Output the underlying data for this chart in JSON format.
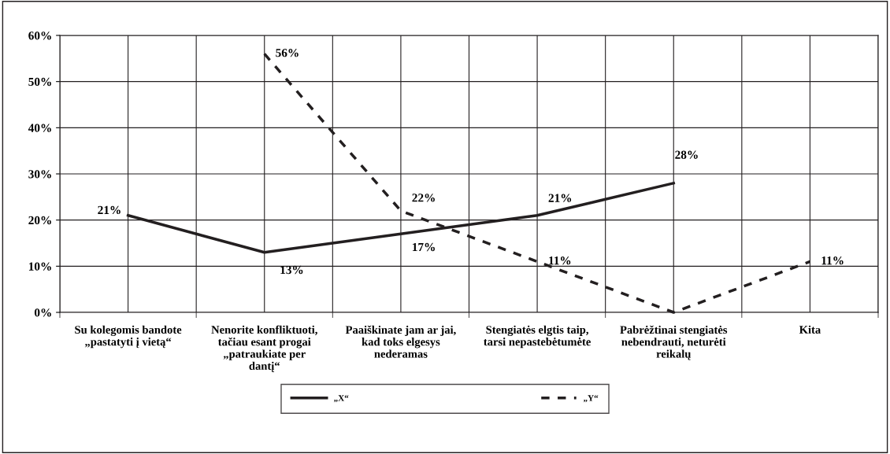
{
  "chart_data": {
    "type": "line",
    "categories": [
      "Su kolegomis bandote\n„pastatyti į vietą“",
      "Nenorite konfliktuoti,\ntačiau esant progai\n„patraukiate per\ndantį“",
      "Paaiškinate jam ar jai,\nkad toks elgesys\nnederamas",
      "Stengiatės elgtis taip,\ntarsi nepastebėtumėte",
      "Pabrėžtinai stengiatės\nnebendrauti, neturėti\nreikalų",
      "Kita"
    ],
    "series": [
      {
        "name": "„X“",
        "color": "#231f20",
        "line_style": "solid",
        "values": [
          21,
          13,
          17,
          21,
          28,
          null
        ],
        "value_labels": [
          "21%",
          "13%",
          "17%",
          "21%",
          "28%",
          null
        ]
      },
      {
        "name": "„Y“",
        "color": "#231f20",
        "line_style": "dashed",
        "values": [
          null,
          56,
          22,
          11,
          0,
          11
        ],
        "value_labels": [
          null,
          "56%",
          "22%",
          "11%",
          null,
          "11%"
        ]
      }
    ],
    "ylim": [
      0,
      60
    ],
    "yticks": [
      {
        "value": 0,
        "label": "0%"
      },
      {
        "value": 10,
        "label": "10%"
      },
      {
        "value": 20,
        "label": "20%"
      },
      {
        "value": 30,
        "label": "30%"
      },
      {
        "value": 40,
        "label": "40%"
      },
      {
        "value": 50,
        "label": "50%"
      },
      {
        "value": 60,
        "label": "60%"
      }
    ],
    "grid": true,
    "legend": "bottom",
    "marker": "none"
  }
}
